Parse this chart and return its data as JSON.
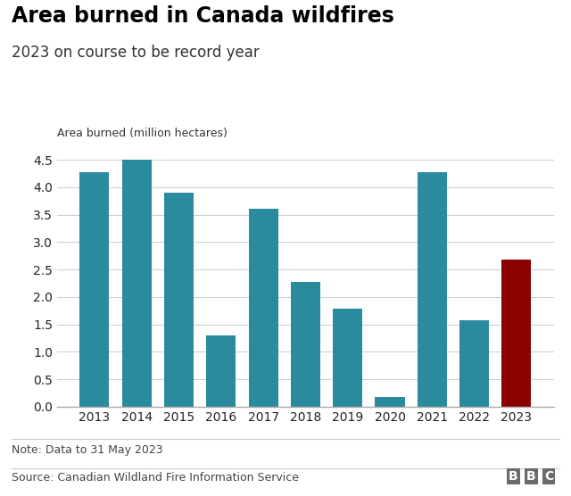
{
  "title": "Area burned in Canada wildfires",
  "subtitle": "2023 on course to be record year",
  "ylabel": "Area burned (million hectares)",
  "note": "Note: Data to 31 May 2023",
  "source": "Source: Canadian Wildland Fire Information Service",
  "years": [
    2013,
    2014,
    2015,
    2016,
    2017,
    2018,
    2019,
    2020,
    2021,
    2022,
    2023
  ],
  "values": [
    4.28,
    4.5,
    3.9,
    1.3,
    3.6,
    2.28,
    1.78,
    0.18,
    4.28,
    1.58,
    2.68
  ],
  "teal_color": "#2a8a9e",
  "red_color": "#8b0000",
  "ylim": [
    0,
    4.7
  ],
  "yticks": [
    0.0,
    0.5,
    1.0,
    1.5,
    2.0,
    2.5,
    3.0,
    3.5,
    4.0,
    4.5
  ],
  "background_color": "#ffffff",
  "title_fontsize": 17,
  "subtitle_fontsize": 12,
  "ylabel_fontsize": 9,
  "tick_fontsize": 10,
  "note_fontsize": 9,
  "source_fontsize": 9,
  "bbc_fontsize": 10
}
